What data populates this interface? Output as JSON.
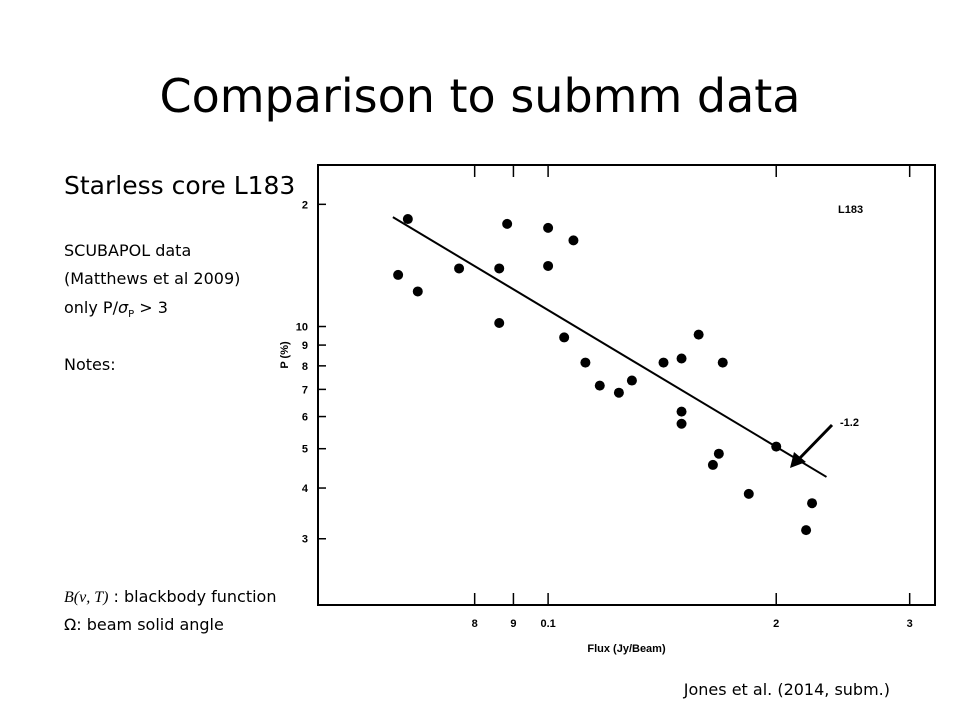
{
  "slide": {
    "title": "Comparison to submm data",
    "subtitle": "Starless core L183",
    "notes": [
      "SCUBAPOL data",
      "(Matthews et al 2009)"
    ],
    "cut": {
      "prefix": "only P/",
      "symbol": "σ",
      "subscript": "P",
      "suffix": " > 3"
    },
    "notes_heading": "Notes:",
    "legend": [
      {
        "symbol": "B(ν, T)",
        "text": " : blackbody function"
      },
      {
        "symbol": "Ω",
        "text": ": beam solid angle"
      }
    ],
    "credit": "Jones et al. (2014, subm.)"
  },
  "chart_data": {
    "type": "scatter",
    "label": "L183",
    "x_label": "Flux (Jy/Beam)",
    "y_label": "P (%)",
    "log_x": true,
    "log_y": true,
    "color": "#000000",
    "xlim": [
      0.0497,
      0.324
    ],
    "xticks": [
      {
        "value": 0.08,
        "label": "8"
      },
      {
        "value": 0.09,
        "label": "9"
      },
      0.1,
      {
        "value": 0.2,
        "label": "2"
      },
      {
        "value": 0.3,
        "label": "3"
      }
    ],
    "ylim": [
      2.06,
      25
    ],
    "yticks": [
      {
        "value": 20,
        "label": "2"
      },
      10,
      9,
      8,
      7,
      6,
      5,
      4,
      3
    ],
    "x": [
      0.0634,
      0.0653,
      0.0673,
      0.0763,
      0.0862,
      0.0862,
      0.0883,
      0.1,
      0.1,
      0.108,
      0.105,
      0.112,
      0.117,
      0.124,
      0.129,
      0.142,
      0.15,
      0.158,
      0.17,
      0.15,
      0.15,
      0.168,
      0.165,
      0.184,
      0.2,
      0.223,
      0.219
    ],
    "y": [
      13.4,
      18.4,
      12.2,
      13.9,
      13.9,
      10.2,
      17.9,
      17.5,
      14.1,
      16.3,
      9.4,
      8.15,
      7.15,
      6.87,
      7.36,
      8.15,
      8.34,
      9.55,
      8.15,
      6.17,
      5.76,
      4.86,
      4.56,
      3.87,
      5.06,
      3.67,
      3.15
    ],
    "fit_line": {
      "x": [
        0.0624,
        0.233
      ],
      "y": [
        18.6,
        4.26
      ]
    },
    "annotation": "-1.2"
  }
}
